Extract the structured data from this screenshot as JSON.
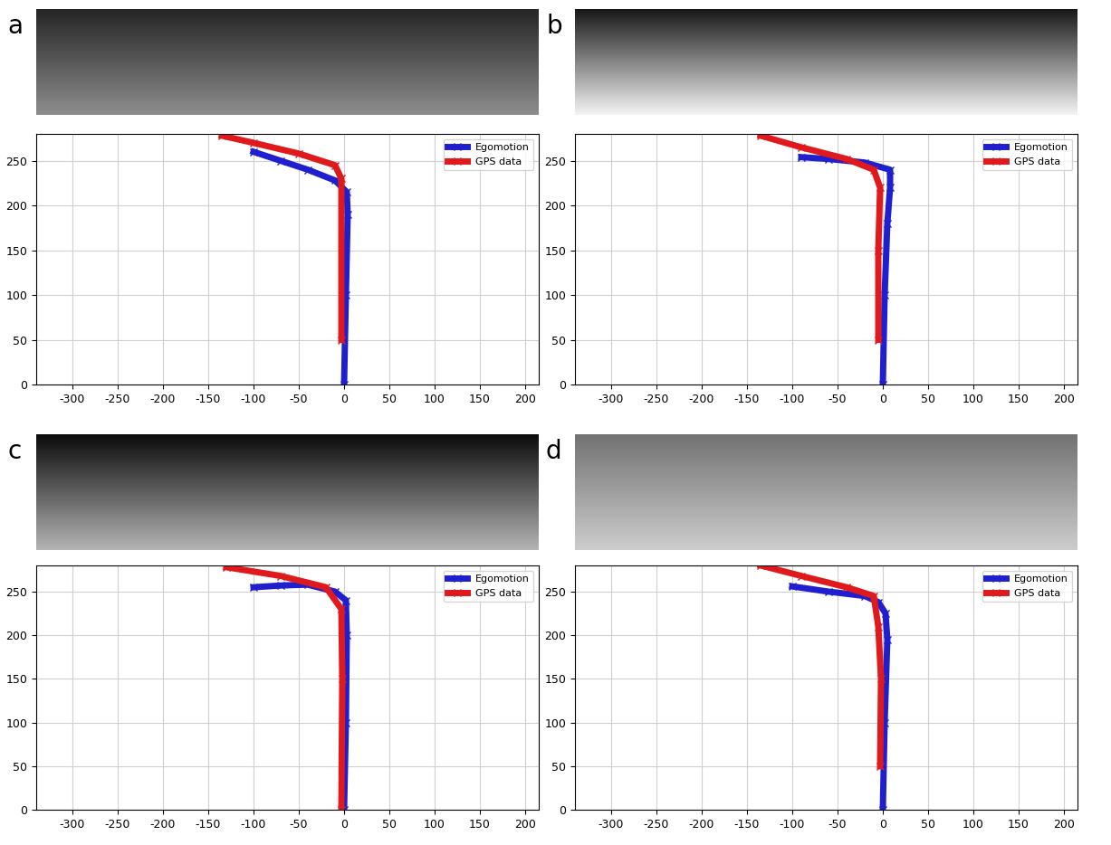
{
  "chart_data": [
    {
      "type": "line",
      "title": "a",
      "legend": "upper right",
      "grid": true,
      "xlim": [
        -340,
        215
      ],
      "ylim": [
        0,
        280
      ],
      "xticks": [
        -300,
        -250,
        -200,
        -150,
        -100,
        -50,
        0,
        50,
        100,
        150,
        200
      ],
      "yticks": [
        0,
        50,
        100,
        150,
        200,
        250
      ],
      "series": [
        {
          "name": "Egomotion",
          "color": "#1f1fd0",
          "marker": "x",
          "x": [
            0,
            2,
            4,
            3,
            -10,
            -40,
            -70,
            -100
          ],
          "values": [
            0,
            100,
            190,
            215,
            228,
            240,
            250,
            260
          ]
        },
        {
          "name": "GPS data",
          "color": "#e0191c",
          "marker": "x",
          "x": [
            -3,
            -3,
            -10,
            -50,
            -100,
            -135
          ],
          "values": [
            50,
            230,
            245,
            258,
            270,
            278
          ]
        }
      ]
    },
    {
      "type": "line",
      "title": "b",
      "legend": "upper right",
      "grid": true,
      "xlim": [
        -340,
        215
      ],
      "ylim": [
        0,
        280
      ],
      "xticks": [
        -300,
        -250,
        -200,
        -150,
        -100,
        -50,
        0,
        50,
        100,
        150,
        200
      ],
      "yticks": [
        0,
        50,
        100,
        150,
        200,
        250
      ],
      "series": [
        {
          "name": "Egomotion",
          "color": "#1f1fd0",
          "marker": "x",
          "x": [
            0,
            2,
            5,
            8,
            8,
            -20,
            -60,
            -90
          ],
          "values": [
            0,
            100,
            180,
            220,
            240,
            248,
            252,
            254
          ]
        },
        {
          "name": "GPS data",
          "color": "#e0191c",
          "marker": "x",
          "x": [
            -5,
            -5,
            -3,
            -10,
            -40,
            -90,
            -135
          ],
          "values": [
            50,
            150,
            220,
            240,
            252,
            265,
            278
          ]
        }
      ]
    },
    {
      "type": "line",
      "title": "c",
      "legend": "upper right",
      "grid": true,
      "xlim": [
        -340,
        215
      ],
      "ylim": [
        0,
        280
      ],
      "xticks": [
        -300,
        -250,
        -200,
        -150,
        -100,
        -50,
        0,
        50,
        100,
        150,
        200
      ],
      "yticks": [
        0,
        50,
        100,
        150,
        200,
        250
      ],
      "series": [
        {
          "name": "Egomotion",
          "color": "#1f1fd0",
          "marker": "x",
          "x": [
            0,
            2,
            3,
            2,
            -10,
            -40,
            -70,
            -100
          ],
          "values": [
            0,
            100,
            200,
            240,
            250,
            258,
            257,
            255
          ]
        },
        {
          "name": "GPS data",
          "color": "#e0191c",
          "marker": "x",
          "x": [
            -3,
            -2,
            -3,
            -20,
            -70,
            -130
          ],
          "values": [
            0,
            150,
            230,
            255,
            268,
            278
          ]
        }
      ]
    },
    {
      "type": "line",
      "title": "d",
      "legend": "upper right",
      "grid": true,
      "xlim": [
        -340,
        215
      ],
      "ylim": [
        0,
        280
      ],
      "xticks": [
        -300,
        -250,
        -200,
        -150,
        -100,
        -50,
        0,
        50,
        100,
        150,
        200
      ],
      "yticks": [
        0,
        50,
        100,
        150,
        200,
        250
      ],
      "series": [
        {
          "name": "Egomotion",
          "color": "#1f1fd0",
          "marker": "x",
          "x": [
            0,
            2,
            5,
            3,
            -5,
            -20,
            -60,
            -100
          ],
          "values": [
            0,
            100,
            195,
            225,
            238,
            245,
            250,
            256
          ]
        },
        {
          "name": "GPS data",
          "color": "#e0191c",
          "marker": "x",
          "x": [
            -3,
            -2,
            -5,
            -10,
            -40,
            -90,
            -135
          ],
          "values": [
            50,
            150,
            210,
            245,
            255,
            268,
            280
          ]
        }
      ]
    }
  ]
}
